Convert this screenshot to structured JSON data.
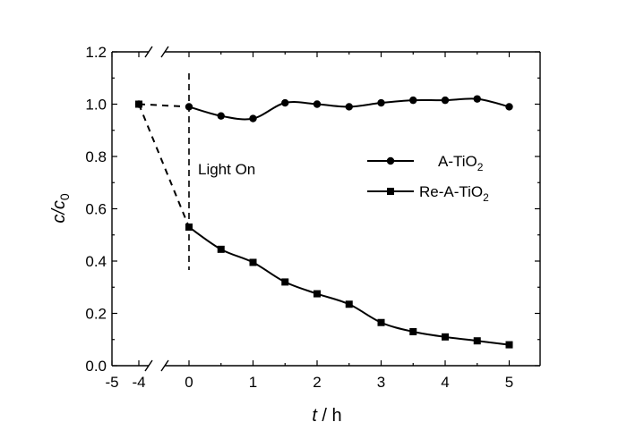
{
  "chart_data": {
    "type": "line",
    "xlabel_italic": "t",
    "xlabel_rest": " / h",
    "ylabel_main": "c/c",
    "ylabel_sub": "0",
    "ylim": [
      0.0,
      1.2
    ],
    "y_ticks": [
      "0.0",
      "0.2",
      "0.4",
      "0.6",
      "0.8",
      "1.0",
      "1.2"
    ],
    "x_ticks_left": [
      "-5",
      "-4"
    ],
    "x_ticks_right": [
      "0",
      "1",
      "2",
      "3",
      "4",
      "5"
    ],
    "axis_break": true,
    "annotation": "Light On",
    "annotation_x": 0,
    "legend_position": "right-middle",
    "series": [
      {
        "name_main": "A-TiO",
        "name_sub": "2",
        "marker": "circle",
        "x": [
          -4,
          0,
          0.5,
          1,
          1.5,
          2,
          2.5,
          3,
          3.5,
          4,
          4.5,
          5
        ],
        "y": [
          1.0,
          0.99,
          0.955,
          0.945,
          1.005,
          1.0,
          0.99,
          1.005,
          1.015,
          1.015,
          1.02,
          0.99
        ]
      },
      {
        "name_main": "Re-A-TiO",
        "name_sub": "2",
        "marker": "square",
        "x": [
          -4,
          0,
          0.5,
          1,
          1.5,
          2,
          2.5,
          3,
          3.5,
          4,
          4.5,
          5
        ],
        "y": [
          1.0,
          0.53,
          0.445,
          0.395,
          0.32,
          0.275,
          0.235,
          0.165,
          0.13,
          0.11,
          0.095,
          0.08
        ]
      }
    ]
  }
}
